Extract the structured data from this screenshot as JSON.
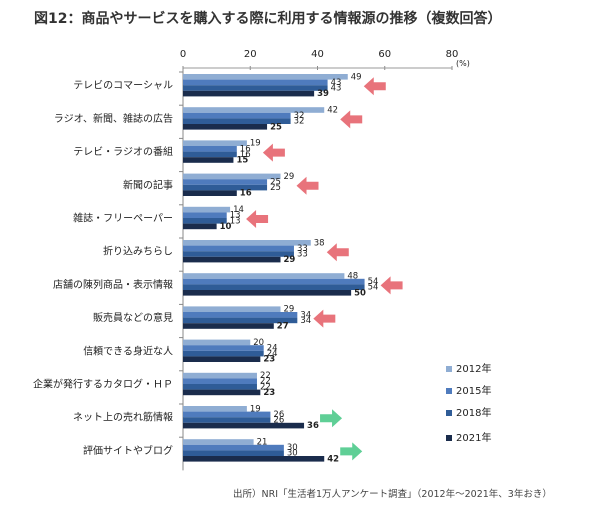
{
  "title": "図12：商品やサービスを購入する際に利用する情報源の推移（複数回答）",
  "source": "出所）NRI「生活者1万人アンケート調査」（2012年～2021年、3年おき）",
  "chart_data": {
    "type": "bar",
    "orientation": "horizontal",
    "unit": "(%)",
    "xlim": [
      0,
      80
    ],
    "xticks": [
      0,
      20,
      40,
      60,
      80
    ],
    "legend_position": "right",
    "categories": [
      "テレビのコマーシャル",
      "ラジオ、新聞、雑誌の広告",
      "テレビ・ラジオの番組",
      "新聞の記事",
      "雑誌・フリーペーパー",
      "折り込みちらし",
      "店舗の陳列商品・表示情報",
      "販売員などの意見",
      "信頼できる身近な人",
      "企業が発行するカタログ・ＨＰ",
      "ネット上の売れ筋情報",
      "評価サイトやブログ"
    ],
    "series": [
      {
        "name": "2012年",
        "color": "#8fadd3",
        "values": [
          49,
          42,
          19,
          29,
          14,
          38,
          48,
          29,
          20,
          22,
          19,
          21
        ]
      },
      {
        "name": "2015年",
        "color": "#4f7bbd",
        "values": [
          43,
          32,
          16,
          25,
          13,
          33,
          54,
          34,
          24,
          22,
          26,
          30
        ]
      },
      {
        "name": "2018年",
        "color": "#2f5c97",
        "values": [
          43,
          32,
          16,
          25,
          13,
          33,
          54,
          34,
          24,
          22,
          26,
          30
        ]
      },
      {
        "name": "2021年",
        "color": "#1a2c4c",
        "values": [
          39,
          25,
          15,
          16,
          10,
          29,
          50,
          27,
          23,
          23,
          36,
          42
        ]
      }
    ],
    "trend_arrows": [
      "down",
      "down",
      "down",
      "down",
      "down",
      "down",
      "down",
      "down",
      "none",
      "none",
      "up",
      "up"
    ],
    "arrow_colors": {
      "down": "#e8737b",
      "up": "#5fcf96"
    }
  }
}
